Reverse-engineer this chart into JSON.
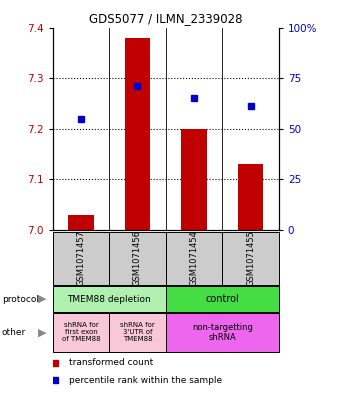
{
  "title": "GDS5077 / ILMN_2339028",
  "samples": [
    "GSM1071457",
    "GSM1071456",
    "GSM1071454",
    "GSM1071455"
  ],
  "bar_values": [
    7.03,
    7.38,
    7.2,
    7.13
  ],
  "bar_base": 7.0,
  "scatter_values": [
    7.22,
    7.285,
    7.26,
    7.245
  ],
  "ylim": [
    7.0,
    7.4
  ],
  "yticks_left": [
    7.0,
    7.1,
    7.2,
    7.3,
    7.4
  ],
  "yticks_right": [
    0,
    25,
    50,
    75,
    100
  ],
  "bar_color": "#c00000",
  "scatter_color": "#0000cc",
  "protocol_labels": [
    "TMEM88 depletion",
    "control"
  ],
  "protocol_colors": [
    "#b0f0b0",
    "#44dd44"
  ],
  "other_labels": [
    "shRNA for\nfirst exon\nof TMEM88",
    "shRNA for\n3'UTR of\nTMEM88",
    "non-targetting\nshRNA"
  ],
  "other_colors": [
    "#f8c8d8",
    "#f8c8d8",
    "#ee66ee"
  ],
  "sample_bg_color": "#cccccc",
  "legend_bar_color": "#c00000",
  "legend_scatter_color": "#0000cc",
  "gridline_color": "#000000",
  "separator_color": "#000000"
}
